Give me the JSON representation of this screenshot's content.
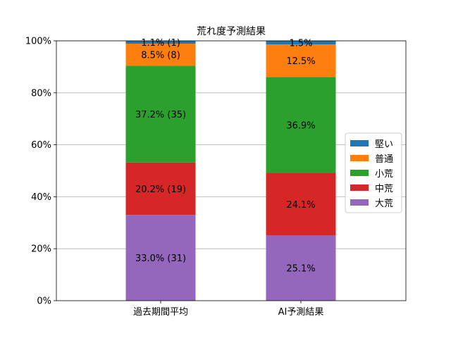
{
  "chart_data": {
    "type": "bar",
    "stacked": true,
    "title": "荒れ度予測結果",
    "xlabel": "",
    "ylabel": "",
    "categories": [
      "過去期間平均",
      "AI予測結果"
    ],
    "ylim": [
      0,
      100
    ],
    "yticks": [
      "0%",
      "20%",
      "40%",
      "60%",
      "80%",
      "100%"
    ],
    "grid": "horizontal",
    "legend_position": "right",
    "series": [
      {
        "name": "大荒",
        "color": "#9467bd",
        "values": [
          33.0,
          25.1
        ],
        "labels": [
          "33.0% (31)",
          "25.1%"
        ]
      },
      {
        "name": "中荒",
        "color": "#d62728",
        "values": [
          20.2,
          24.1
        ],
        "labels": [
          "20.2% (19)",
          "24.1%"
        ]
      },
      {
        "name": "小荒",
        "color": "#2ca02c",
        "values": [
          37.2,
          36.9
        ],
        "labels": [
          "37.2% (35)",
          "36.9%"
        ]
      },
      {
        "name": "普通",
        "color": "#ff7f0e",
        "values": [
          8.5,
          12.5
        ],
        "labels": [
          "8.5% (8)",
          "12.5%"
        ]
      },
      {
        "name": "堅い",
        "color": "#1f77b4",
        "values": [
          1.1,
          1.5
        ],
        "labels": [
          "1.1% (1)",
          "1.5%"
        ]
      }
    ],
    "legend_order": [
      "堅い",
      "普通",
      "小荒",
      "中荒",
      "大荒"
    ]
  }
}
